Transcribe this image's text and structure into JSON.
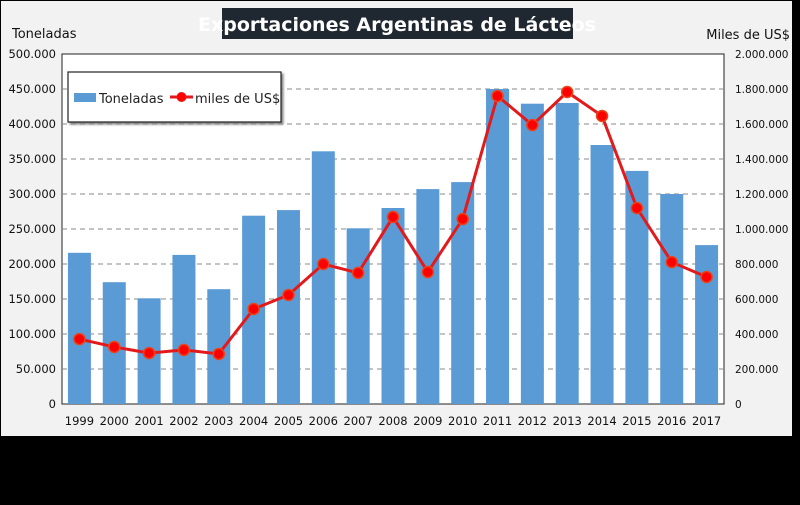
{
  "chart_data": {
    "type": "bar+line",
    "title": "Exportaciones Argentinas de Lácteos",
    "ylabel_left": "Toneladas",
    "ylabel_right": "Miles de US$",
    "ylim_left": [
      0,
      500000
    ],
    "ylim_right": [
      0,
      2000000
    ],
    "yticks_left": [
      "0",
      "50.000",
      "100.000",
      "150.000",
      "200.000",
      "250.000",
      "300.000",
      "350.000",
      "400.000",
      "450.000",
      "500.000"
    ],
    "yticks_right": [
      "0",
      "200.000",
      "400.000",
      "600.000",
      "800.000",
      "1.000.000",
      "1.200.000",
      "1.400.000",
      "1.600.000",
      "1.800.000",
      "2.000.000"
    ],
    "categories": [
      "1999",
      "2000",
      "2001",
      "2002",
      "2003",
      "2004",
      "2005",
      "2006",
      "2007",
      "2008",
      "2009",
      "2010",
      "2011",
      "2012",
      "2013",
      "2014",
      "2015",
      "2016",
      "2017"
    ],
    "series": [
      {
        "name": "Toneladas",
        "type": "bar",
        "axis": "left",
        "color": "#5b9bd5",
        "values": [
          216000,
          174000,
          151000,
          213000,
          164000,
          269000,
          277000,
          361000,
          251000,
          280000,
          307000,
          317000,
          450000,
          429000,
          430000,
          370000,
          333000,
          300000,
          227000
        ]
      },
      {
        "name": "miles de US$",
        "type": "line",
        "axis": "right",
        "color": "#e31a1c",
        "values": [
          371000,
          326000,
          291000,
          309000,
          286000,
          543000,
          623000,
          800000,
          749000,
          1069000,
          754000,
          1057000,
          1760000,
          1594000,
          1783000,
          1646000,
          1120000,
          811000,
          726000
        ]
      }
    ],
    "grid": "horizontal dashed",
    "legend": "top-left"
  }
}
